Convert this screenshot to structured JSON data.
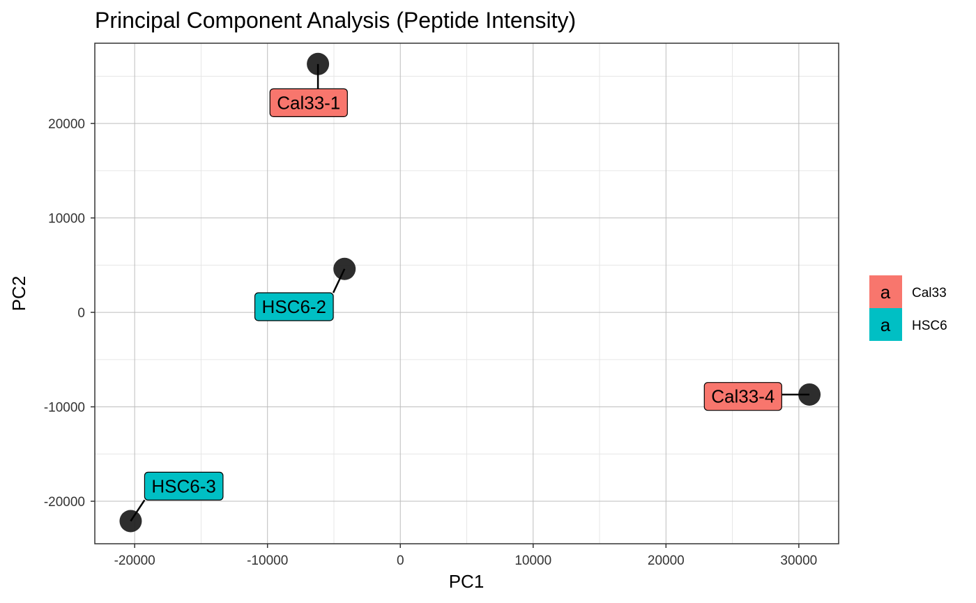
{
  "chart_data": {
    "type": "scatter",
    "title": "Principal Component Analysis (Peptide Intensity)",
    "xlabel": "PC1",
    "ylabel": "PC2",
    "xlim": [
      -23000,
      33000
    ],
    "ylim": [
      -24500,
      28500
    ],
    "x_ticks": [
      -20000,
      -10000,
      0,
      10000,
      20000,
      30000
    ],
    "y_ticks": [
      -20000,
      -10000,
      0,
      10000,
      20000
    ],
    "x_tick_labels": [
      "-20000",
      "-10000",
      "0",
      "10000",
      "20000",
      "30000"
    ],
    "y_tick_labels": [
      "-20000",
      "-10000",
      "0",
      "10000",
      "20000"
    ],
    "grid": true,
    "legend_position": "right",
    "legend": [
      {
        "name": "Cal33",
        "color": "#F8766D",
        "key": "a"
      },
      {
        "name": "HSC6",
        "color": "#00BFC4",
        "key": "a"
      }
    ],
    "points": [
      {
        "label": "Cal33-1",
        "group": "Cal33",
        "x": -6200,
        "y": 26300,
        "label_x": -6900,
        "label_y": 22200
      },
      {
        "label": "HSC6-2",
        "group": "HSC6",
        "x": -4200,
        "y": 4600,
        "label_x": -8000,
        "label_y": 600
      },
      {
        "label": "Cal33-4",
        "group": "Cal33",
        "x": 30800,
        "y": -8700,
        "label_x": 25800,
        "label_y": -8900
      },
      {
        "label": "HSC6-3",
        "group": "HSC6",
        "x": -20300,
        "y": -22100,
        "label_x": -16300,
        "label_y": -18400
      }
    ],
    "point_color": "#222222",
    "label_colors": {
      "Cal33": "#F8766D",
      "HSC6": "#00BFC4"
    }
  }
}
